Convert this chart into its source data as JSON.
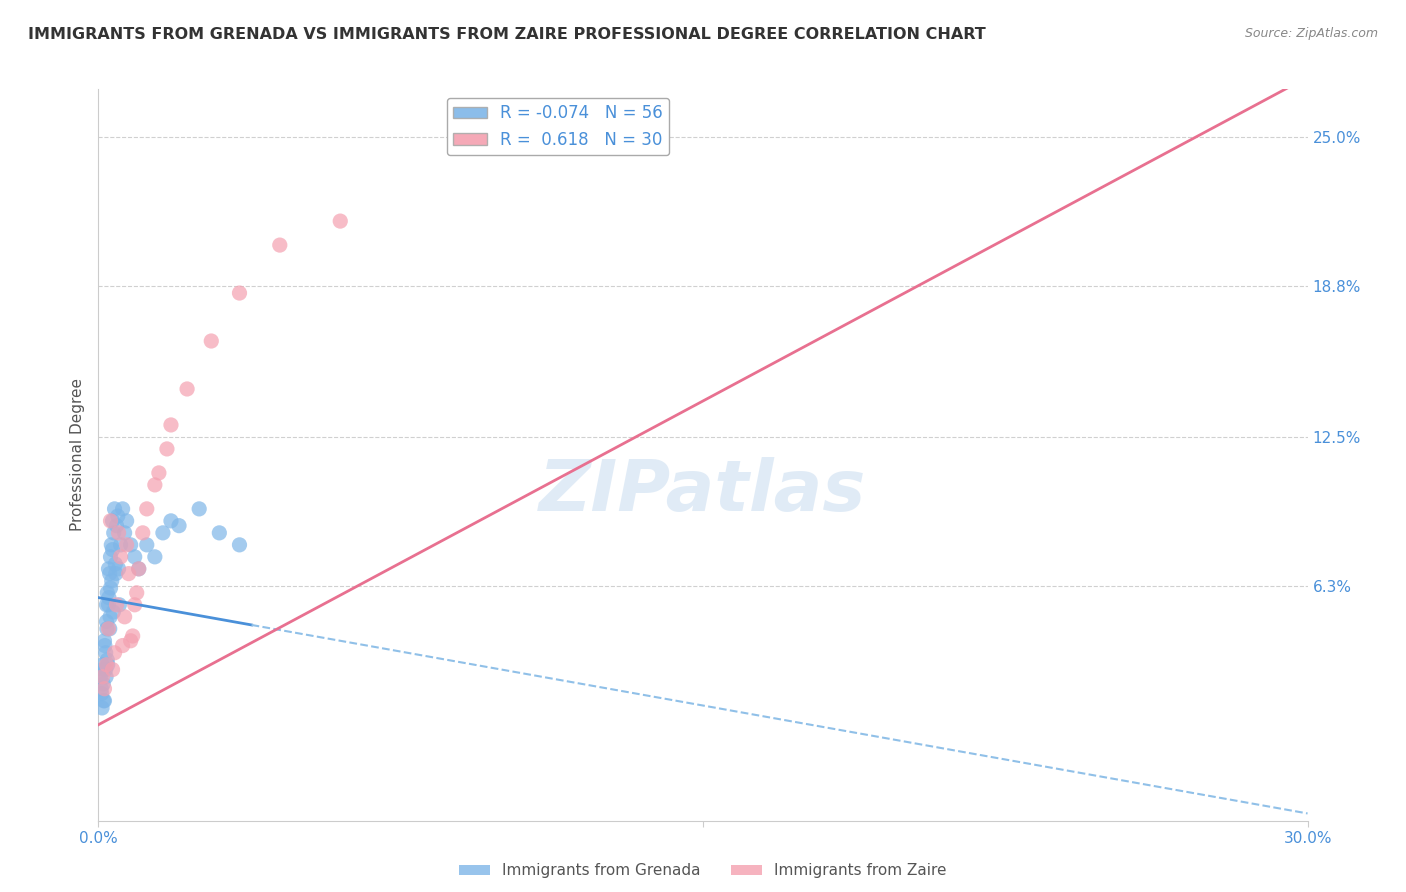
{
  "title": "IMMIGRANTS FROM GRENADA VS IMMIGRANTS FROM ZAIRE PROFESSIONAL DEGREE CORRELATION CHART",
  "source": "Source: ZipAtlas.com",
  "ylabel": "Professional Degree",
  "ytick_vals": [
    6.3,
    12.5,
    18.8,
    25.0
  ],
  "ytick_labels": [
    "6.3%",
    "12.5%",
    "18.8%",
    "25.0%"
  ],
  "xlim": [
    0.0,
    30.0
  ],
  "ylim": [
    -3.5,
    27.0
  ],
  "watermark": "ZIPatlas",
  "legend_grenada_R": "-0.074",
  "legend_grenada_N": "56",
  "legend_zaire_R": "0.618",
  "legend_zaire_N": "30",
  "grenada_color": "#7EB6E8",
  "zaire_color": "#F4A0B0",
  "trend_grenada_solid_color": "#4A90D9",
  "trend_grenada_dashed_color": "#90C0E8",
  "trend_zaire_color": "#E87090",
  "grid_color": "#D0D0D0",
  "ytick_color": "#4A90D9",
  "xtick_color": "#4A90D9",
  "title_color": "#333333",
  "gren_x": [
    0.05,
    0.08,
    0.1,
    0.12,
    0.15,
    0.15,
    0.18,
    0.18,
    0.2,
    0.2,
    0.22,
    0.22,
    0.25,
    0.25,
    0.28,
    0.28,
    0.3,
    0.3,
    0.32,
    0.35,
    0.35,
    0.38,
    0.4,
    0.42,
    0.45,
    0.48,
    0.5,
    0.55,
    0.6,
    0.65,
    0.7,
    0.8,
    0.9,
    1.0,
    1.2,
    1.4,
    1.6,
    1.8,
    2.0,
    2.5,
    3.0,
    3.5,
    0.07,
    0.09,
    0.11,
    0.13,
    0.16,
    0.19,
    0.21,
    0.23,
    0.26,
    0.29,
    0.33,
    0.37,
    0.43,
    0.52
  ],
  "gren_y": [
    2.5,
    1.8,
    3.0,
    2.2,
    4.0,
    1.5,
    3.5,
    2.8,
    5.5,
    4.8,
    6.0,
    3.2,
    7.0,
    5.5,
    6.8,
    4.5,
    7.5,
    6.2,
    8.0,
    9.0,
    7.8,
    8.5,
    9.5,
    7.2,
    8.8,
    9.2,
    7.0,
    8.0,
    9.5,
    8.5,
    9.0,
    8.0,
    7.5,
    7.0,
    8.0,
    7.5,
    8.5,
    9.0,
    8.8,
    9.5,
    8.5,
    8.0,
    2.0,
    1.2,
    2.8,
    1.5,
    3.8,
    2.5,
    4.5,
    3.0,
    5.8,
    5.0,
    6.5,
    5.2,
    6.8,
    5.5
  ],
  "zaire_x": [
    0.1,
    0.2,
    0.3,
    0.4,
    0.5,
    0.6,
    0.7,
    0.8,
    0.9,
    1.0,
    1.2,
    1.5,
    1.8,
    2.2,
    2.8,
    3.5,
    4.5,
    6.0,
    0.15,
    0.25,
    0.35,
    0.45,
    0.55,
    0.65,
    0.75,
    0.85,
    0.95,
    1.1,
    1.4,
    1.7
  ],
  "zaire_y": [
    2.5,
    3.0,
    9.0,
    3.5,
    8.5,
    3.8,
    8.0,
    4.0,
    5.5,
    7.0,
    9.5,
    11.0,
    13.0,
    14.5,
    16.5,
    18.5,
    20.5,
    21.5,
    2.0,
    4.5,
    2.8,
    5.5,
    7.5,
    5.0,
    6.8,
    4.2,
    6.0,
    8.5,
    10.5,
    12.0
  ],
  "gren_trend_x0": 0.0,
  "gren_trend_y0": 5.8,
  "gren_trend_slope": -0.3,
  "gren_solid_end": 3.8,
  "zaire_trend_x0": 0.0,
  "zaire_trend_y0": 0.5,
  "zaire_trend_slope": 0.9
}
